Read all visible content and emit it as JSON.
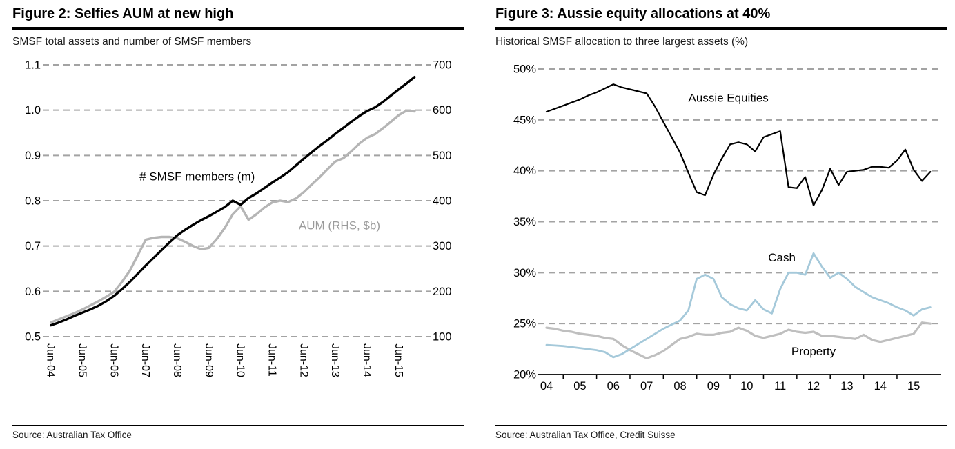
{
  "page": {
    "background": "#ffffff"
  },
  "figure2": {
    "title": "Figure 2: Selfies AUM at new high",
    "subtitle": "SMSF total assets and number of SMSF members",
    "source": "Source: Australian Tax Office"
  },
  "figure3": {
    "title": "Figure 3: Aussie equity allocations at 40%",
    "subtitle": "Historical SMSF allocation to three largest assets (%)",
    "source": "Source: Australian Tax Office, Credit Suisse"
  },
  "chart_data": [
    {
      "type": "line",
      "title": "Figure 2: Selfies AUM at new high",
      "subtitle": "SMSF total assets and number of SMSF members",
      "x_unit": "quarterly, Jun-04 to Dec-15",
      "x_start": 0,
      "x_step": 1,
      "x_range": [
        -0.5,
        47.5
      ],
      "x_tick_positions": [
        0,
        4,
        8,
        12,
        16,
        20,
        24,
        28,
        32,
        36,
        40,
        44
      ],
      "x_tick_labels": [
        "Jun-04",
        "Jun-05",
        "Jun-06",
        "Jun-07",
        "Jun-08",
        "Jun-09",
        "Jun-10",
        "Jun-11",
        "Jun-12",
        "Jun-13",
        "Jun-14",
        "Jun-15"
      ],
      "x_labels_rotated": true,
      "x_axis_solid": false,
      "grid_color": "#a3a3a3",
      "grid_dashed": true,
      "legend": "none",
      "y_left": {
        "min": 0.5,
        "max": 1.1,
        "tick_values": [
          0.5,
          0.6,
          0.7,
          0.8,
          0.9,
          1.0,
          1.1
        ],
        "tick_labels": [
          "0.5",
          "0.6",
          "0.7",
          "0.8",
          "0.9",
          "1.0",
          "1.1"
        ]
      },
      "y_right": {
        "min": 100,
        "max": 700,
        "tick_values": [
          100,
          200,
          300,
          400,
          500,
          600,
          700
        ],
        "tick_labels": [
          "100",
          "200",
          "300",
          "400",
          "500",
          "600",
          "700"
        ]
      },
      "series": [
        {
          "name": "AUM (RHS, $b)",
          "axis": "right",
          "color": "#b5b5b5",
          "width": 3.4,
          "values": [
            131,
            138,
            145,
            152,
            160,
            169,
            178,
            188,
            199,
            221,
            246,
            280,
            314,
            318,
            320,
            320,
            317,
            309,
            300,
            293,
            296,
            316,
            340,
            370,
            388,
            358,
            370,
            385,
            396,
            400,
            397,
            405,
            419,
            436,
            452,
            470,
            487,
            494,
            509,
            526,
            539,
            547,
            560,
            574,
            589,
            599,
            597
          ]
        },
        {
          "name": "# SMSF members (m)",
          "axis": "left",
          "color": "#000000",
          "width": 3.4,
          "values": [
            0.525,
            0.531,
            0.538,
            0.546,
            0.553,
            0.56,
            0.568,
            0.578,
            0.59,
            0.605,
            0.621,
            0.639,
            0.657,
            0.674,
            0.691,
            0.708,
            0.724,
            0.736,
            0.747,
            0.757,
            0.766,
            0.776,
            0.786,
            0.8,
            0.791,
            0.806,
            0.816,
            0.828,
            0.84,
            0.851,
            0.863,
            0.878,
            0.893,
            0.907,
            0.921,
            0.934,
            0.948,
            0.961,
            0.974,
            0.987,
            0.998,
            1.006,
            1.018,
            1.032,
            1.046,
            1.059,
            1.073
          ]
        }
      ],
      "annotations": [
        {
          "text": "# SMSF members (m)",
          "x": 18.5,
          "y": 0.845,
          "color": "#000000",
          "size": 17
        },
        {
          "text": "AUM (RHS, $b)",
          "x": 36.5,
          "y": 0.737,
          "color": "#9b9b9b",
          "size": 17
        }
      ]
    },
    {
      "type": "line",
      "title": "Figure 3: Aussie equity allocations at 40%",
      "subtitle": "Historical SMSF allocation to three largest assets (%)",
      "x_unit": "year (2004 to mid-2015), quarterly points",
      "x_start": 4,
      "x_step": 0.25,
      "x_range": [
        3.875,
        15.7
      ],
      "x_tick_positions": [
        4,
        5,
        6,
        7,
        8,
        9,
        10,
        11,
        12,
        13,
        14,
        15
      ],
      "x_tick_labels": [
        "04",
        "05",
        "06",
        "07",
        "08",
        "09",
        "10",
        "11",
        "12",
        "13",
        "14",
        "15"
      ],
      "x_labels_rotated": false,
      "x_axis_solid": true,
      "x_minor_ticks": [
        4.5,
        5.5,
        6.5,
        7.5,
        8.5,
        9.5,
        10.5,
        11.5,
        12.5,
        13.5,
        14.5
      ],
      "grid_color": "#a3a3a3",
      "grid_dashed": true,
      "legend": "none",
      "y_left": {
        "min": 20,
        "max": 50,
        "tick_values": [
          20,
          25,
          30,
          35,
          40,
          45,
          50
        ],
        "tick_labels": [
          "20%",
          "25%",
          "30%",
          "35%",
          "40%",
          "45%",
          "50%"
        ]
      },
      "series": [
        {
          "name": "Property",
          "axis": "left",
          "color": "#bfbfbf",
          "width": 3.2,
          "values": [
            24.6,
            24.5,
            24.3,
            24.2,
            24.0,
            23.9,
            23.8,
            23.6,
            23.5,
            22.9,
            22.4,
            22.0,
            21.6,
            21.9,
            22.3,
            22.9,
            23.5,
            23.7,
            24.0,
            23.9,
            23.9,
            24.1,
            24.2,
            24.6,
            24.3,
            23.8,
            23.6,
            23.8,
            24.0,
            24.4,
            24.2,
            24.1,
            24.2,
            23.8,
            23.8,
            23.7,
            23.6,
            23.5,
            23.9,
            23.4,
            23.2,
            23.4,
            23.6,
            23.8,
            24.0,
            25.1,
            25.0
          ]
        },
        {
          "name": "Cash",
          "axis": "left",
          "color": "#a5c9da",
          "width": 2.8,
          "values": [
            22.9,
            22.85,
            22.8,
            22.7,
            22.6,
            22.5,
            22.4,
            22.2,
            21.7,
            22.0,
            22.5,
            23.0,
            23.5,
            24.0,
            24.5,
            24.9,
            25.3,
            26.3,
            29.4,
            29.8,
            29.4,
            27.6,
            26.9,
            26.5,
            26.3,
            27.3,
            26.4,
            26.0,
            28.4,
            30.0,
            30.0,
            29.8,
            31.9,
            30.6,
            29.5,
            30.0,
            29.4,
            28.6,
            28.1,
            27.6,
            27.3,
            27.0,
            26.6,
            26.3,
            25.8,
            26.4,
            26.6
          ]
        },
        {
          "name": "Aussie Equities",
          "axis": "left",
          "color": "#000000",
          "width": 2.2,
          "values": [
            45.8,
            46.1,
            46.4,
            46.7,
            47.0,
            47.4,
            47.7,
            48.1,
            48.5,
            48.2,
            48.0,
            47.8,
            47.6,
            46.3,
            44.8,
            43.3,
            41.8,
            39.8,
            37.9,
            37.6,
            39.6,
            41.2,
            42.6,
            42.8,
            42.6,
            41.9,
            43.3,
            43.6,
            43.9,
            38.4,
            38.3,
            39.4,
            36.6,
            38.1,
            40.2,
            38.6,
            39.9,
            40.0,
            40.1,
            40.4,
            40.4,
            40.3,
            41.0,
            42.1,
            40.1,
            39.0,
            39.9
          ]
        }
      ],
      "annotations": [
        {
          "text": "Aussie Equities",
          "x": 9.45,
          "y": 46.8,
          "color": "#000000",
          "size": 17
        },
        {
          "text": "Cash",
          "x": 11.05,
          "y": 31.1,
          "color": "#000000",
          "size": 17
        },
        {
          "text": "Property",
          "x": 12.0,
          "y": 21.9,
          "color": "#000000",
          "size": 17
        }
      ]
    }
  ]
}
